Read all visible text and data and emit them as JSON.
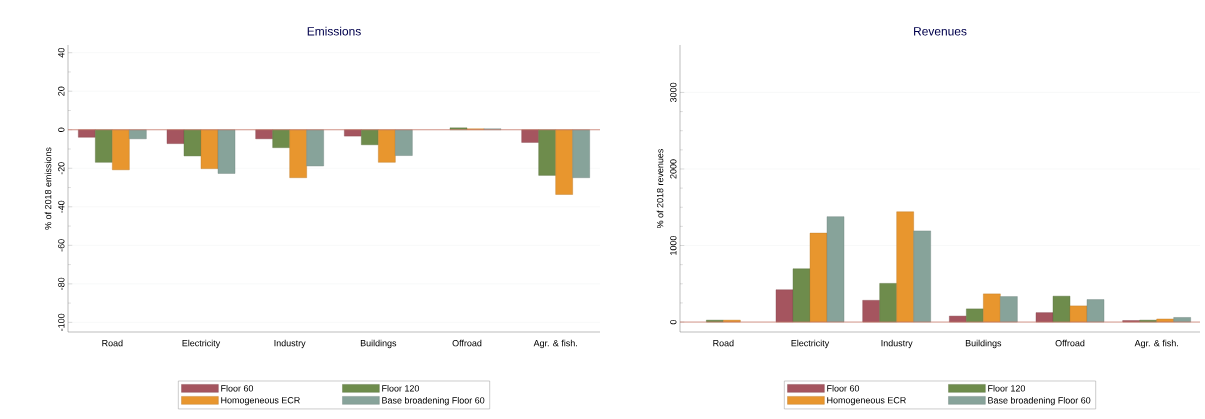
{
  "chart_data": [
    {
      "type": "bar",
      "title": "Emissions",
      "ylabel": "% of 2018 emissions",
      "categories": [
        "Road",
        "Electricity",
        "Industry",
        "Buildings",
        "Offroad",
        "Agr. & fish."
      ],
      "series": [
        {
          "name": "Floor 60",
          "color": "#a5555f",
          "values": [
            -3.9,
            -7.2,
            -4.7,
            -3.3,
            null,
            -6.6
          ]
        },
        {
          "name": "Floor 120",
          "color": "#6e8c4c",
          "values": [
            -16.9,
            -13.6,
            -9.3,
            -7.8,
            1,
            -23.7
          ]
        },
        {
          "name": "Homogeneous ECR",
          "color": "#e8962e",
          "values": [
            -20.8,
            -20.2,
            -24.9,
            -16.9,
            0.5,
            -33.6
          ]
        },
        {
          "name": "Base broadening Floor 60",
          "color": "#87a39a",
          "values": [
            -4.7,
            -22.7,
            -18.8,
            -13.4,
            0.5,
            -24.9
          ]
        }
      ],
      "ylim": [
        -105,
        44
      ],
      "yticks": [
        -100,
        -80,
        -60,
        -40,
        -20,
        0,
        20,
        40
      ],
      "grid": "y",
      "legend": "bottom",
      "ref_lines": [
        {
          "axis": "y",
          "value": 0,
          "color": "#c87a6a"
        }
      ]
    },
    {
      "type": "bar",
      "title": "Revenues",
      "ylabel": "% of 2018 revenues",
      "categories": [
        "Road",
        "Electricity",
        "Industry",
        "Buildings",
        "Offroad",
        "Agr. & fish."
      ],
      "series": [
        {
          "name": "Floor 60",
          "color": "#a5555f",
          "values": [
            null,
            422,
            284,
            78,
            123,
            20
          ]
        },
        {
          "name": "Floor 120",
          "color": "#6e8c4c",
          "values": [
            25,
            696,
            505,
            172,
            338,
            25
          ]
        },
        {
          "name": "Homogeneous ECR",
          "color": "#e8962e",
          "values": [
            25,
            1162,
            1441,
            368,
            211,
            40
          ]
        },
        {
          "name": "Base broadening Floor 60",
          "color": "#87a39a",
          "values": [
            null,
            1377,
            1191,
            333,
            294,
            60
          ]
        }
      ],
      "ylim": [
        -130,
        3620
      ],
      "yticks": [
        0,
        1000,
        2000,
        3000
      ],
      "grid": "y",
      "legend": "bottom",
      "ref_lines": [
        {
          "axis": "y",
          "value": 0,
          "color": "#c87a6a"
        }
      ]
    }
  ]
}
